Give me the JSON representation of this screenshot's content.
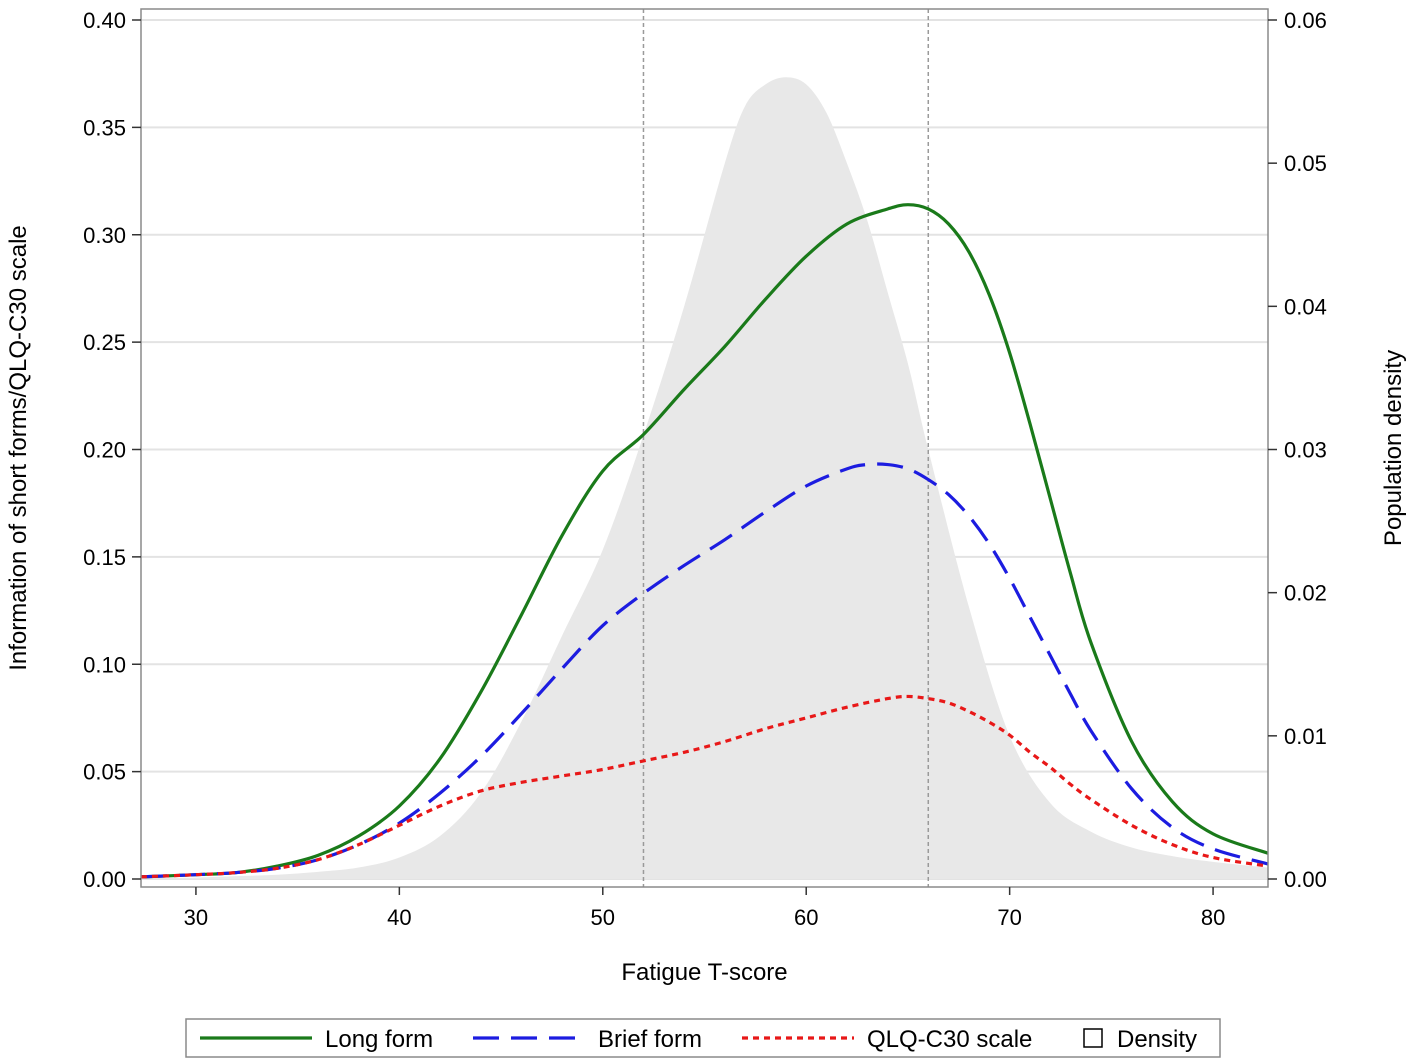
{
  "chart_data": {
    "type": "line",
    "title": "",
    "xlabel": "Fatigue T-score",
    "ylabel": "Information of short forms/QLQ-C30 scale",
    "y2label": "Population density",
    "xlim": [
      27.3,
      82.7
    ],
    "ylim": [
      0,
      0.4
    ],
    "y2lim": [
      0,
      0.06
    ],
    "xticks": [
      "30",
      "40",
      "50",
      "60",
      "70",
      "80"
    ],
    "xtick_values": [
      30,
      40,
      50,
      60,
      70,
      80
    ],
    "yticks": [
      "0.00",
      "0.05",
      "0.10",
      "0.15",
      "0.20",
      "0.25",
      "0.30",
      "0.35",
      "0.40"
    ],
    "ytick_values": [
      0,
      0.05,
      0.1,
      0.15,
      0.2,
      0.25,
      0.3,
      0.35,
      0.4
    ],
    "y2ticks": [
      "0.00",
      "0.01",
      "0.02",
      "0.03",
      "0.04",
      "0.05",
      "0.06"
    ],
    "y2tick_values": [
      0,
      0.01,
      0.02,
      0.03,
      0.04,
      0.05,
      0.06
    ],
    "grid": true,
    "vlines": [
      52,
      66
    ],
    "legend_position": "bottom",
    "density": {
      "name": "Density",
      "color": "#e8e8e8",
      "x": [
        27.3,
        30,
        32,
        34,
        36,
        38,
        40,
        42,
        44,
        46,
        48,
        50,
        52,
        54,
        56,
        57,
        58,
        59,
        60,
        61,
        62,
        63,
        64,
        65,
        66,
        68,
        70,
        72,
        74,
        76,
        78,
        80,
        82.7
      ],
      "y": [
        0,
        0.0001,
        0.0002,
        0.0003,
        0.0005,
        0.0008,
        0.0015,
        0.003,
        0.006,
        0.011,
        0.017,
        0.023,
        0.031,
        0.04,
        0.05,
        0.054,
        0.0555,
        0.056,
        0.0555,
        0.0535,
        0.05,
        0.046,
        0.041,
        0.036,
        0.03,
        0.019,
        0.01,
        0.0053,
        0.0033,
        0.0022,
        0.0016,
        0.0012,
        0.0008
      ]
    },
    "series": [
      {
        "name": "Long form",
        "color": "#1a7a1a",
        "style": "solid",
        "x": [
          27.3,
          30,
          32,
          34,
          36,
          38,
          40,
          42,
          44,
          46,
          48,
          50,
          52,
          54,
          56,
          58,
          60,
          62,
          64,
          65,
          66,
          67,
          68,
          69,
          70,
          71,
          72,
          73,
          74,
          76,
          78,
          80,
          82.7
        ],
        "y": [
          0.001,
          0.002,
          0.003,
          0.006,
          0.011,
          0.02,
          0.034,
          0.056,
          0.087,
          0.123,
          0.16,
          0.19,
          0.207,
          0.228,
          0.248,
          0.27,
          0.29,
          0.305,
          0.312,
          0.314,
          0.312,
          0.305,
          0.292,
          0.272,
          0.245,
          0.212,
          0.177,
          0.142,
          0.11,
          0.064,
          0.036,
          0.021,
          0.012
        ]
      },
      {
        "name": "Brief form",
        "color": "#1c1ce0",
        "style": "dashed",
        "x": [
          27.3,
          30,
          32,
          34,
          36,
          38,
          40,
          42,
          44,
          46,
          48,
          50,
          52,
          54,
          56,
          58,
          60,
          62,
          63,
          64,
          65,
          66,
          67,
          68,
          69,
          70,
          71,
          72,
          73,
          74,
          76,
          78,
          80,
          82.7
        ],
        "y": [
          0.001,
          0.002,
          0.003,
          0.005,
          0.009,
          0.016,
          0.026,
          0.04,
          0.057,
          0.077,
          0.098,
          0.118,
          0.133,
          0.146,
          0.158,
          0.171,
          0.183,
          0.191,
          0.193,
          0.193,
          0.191,
          0.186,
          0.179,
          0.169,
          0.156,
          0.14,
          0.122,
          0.104,
          0.086,
          0.069,
          0.042,
          0.024,
          0.014,
          0.007
        ]
      },
      {
        "name": "QLQ-C30 scale",
        "color": "#e81818",
        "style": "dotted",
        "x": [
          27.3,
          30,
          32,
          34,
          36,
          38,
          40,
          42,
          44,
          46,
          48,
          50,
          52,
          54,
          56,
          58,
          60,
          62,
          64,
          65,
          66,
          67,
          68,
          69,
          70,
          71,
          72,
          73,
          74,
          76,
          78,
          80,
          82.7
        ],
        "y": [
          0.001,
          0.002,
          0.003,
          0.005,
          0.009,
          0.016,
          0.025,
          0.034,
          0.041,
          0.045,
          0.048,
          0.051,
          0.055,
          0.059,
          0.064,
          0.07,
          0.075,
          0.08,
          0.084,
          0.085,
          0.084,
          0.082,
          0.078,
          0.073,
          0.067,
          0.059,
          0.052,
          0.044,
          0.037,
          0.025,
          0.016,
          0.01,
          0.006
        ]
      }
    ],
    "legend": [
      {
        "label": "Long form",
        "kind": "line",
        "style": "solid",
        "color": "#1a7a1a"
      },
      {
        "label": "Brief form",
        "kind": "line",
        "style": "dashed",
        "color": "#1c1ce0"
      },
      {
        "label": "QLQ-C30 scale",
        "kind": "line",
        "style": "dotted",
        "color": "#e81818"
      },
      {
        "label": "Density",
        "kind": "box",
        "color": "#ffffff"
      }
    ]
  }
}
